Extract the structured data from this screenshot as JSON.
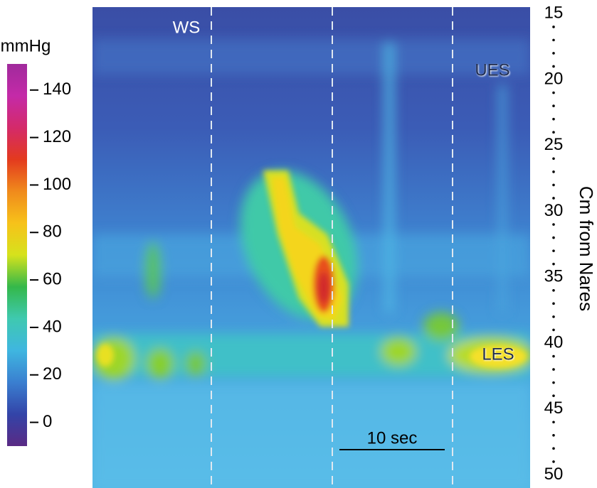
{
  "chart_data": {
    "type": "heatmap",
    "y_label": "Cm from Nares",
    "ylim": [
      14.5,
      51
    ],
    "y_inverted": true,
    "yticks": [
      15,
      20,
      25,
      30,
      35,
      40,
      45,
      50
    ],
    "colorbar": {
      "title": "mmHg",
      "lim": [
        -10,
        151
      ],
      "ticks": [
        0,
        20,
        40,
        60,
        80,
        100,
        120,
        140
      ],
      "colors": [
        "#5a2a84",
        "#3344a8",
        "#3a7fd0",
        "#3fb6e0",
        "#3fc9b0",
        "#34b84a",
        "#d6e21c",
        "#f7c21a",
        "#f08a1c",
        "#e33a1e",
        "#d42a6a",
        "#c42aa8",
        "#a02a9c"
      ]
    },
    "annotations": {
      "swallow": "WS",
      "upper_sphincter": "UES",
      "lower_sphincter": "LES",
      "scale_bar": "10 sec"
    }
  }
}
